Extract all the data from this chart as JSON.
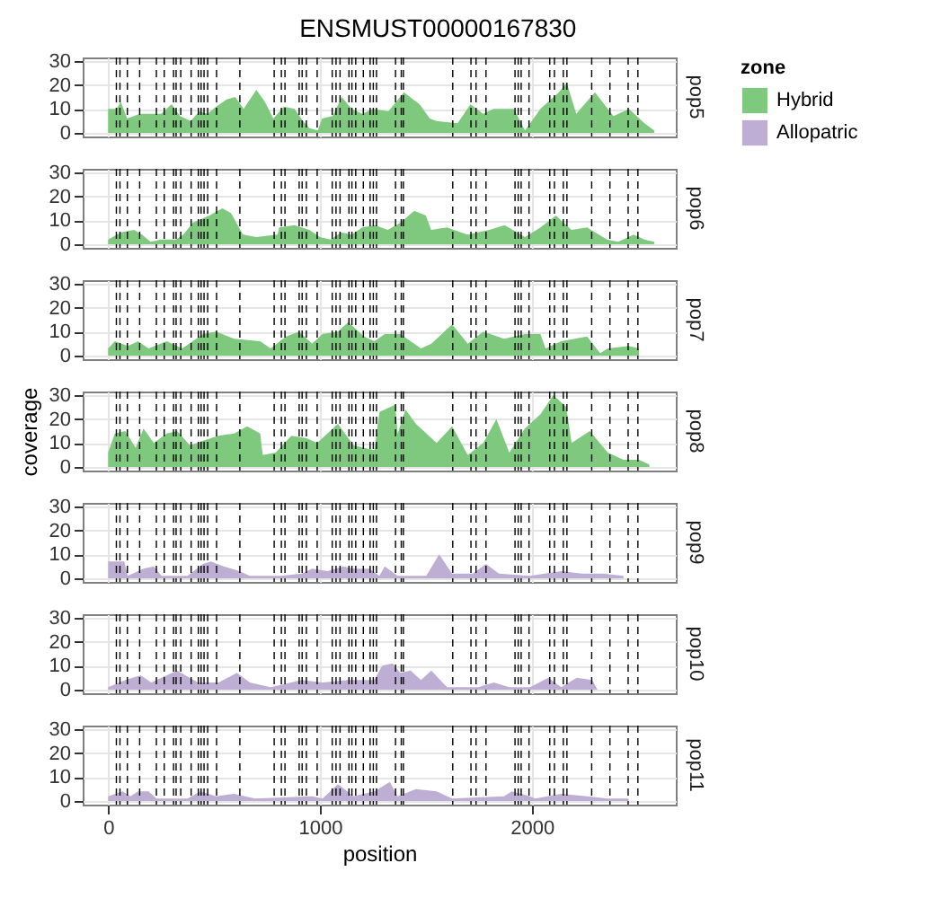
{
  "chart_data": [
    {
      "type": "area",
      "title": "ENSMUST00000167830",
      "subtitle": "pop5",
      "legend": "right",
      "legend_title": "zone",
      "x": [
        0,
        40,
        60,
        90,
        150,
        250,
        300,
        340,
        390,
        430,
        470,
        510,
        560,
        600,
        640,
        700,
        740,
        780,
        830,
        880,
        920,
        950,
        990,
        1010,
        1060,
        1103,
        1150,
        1200,
        1250,
        1323,
        1397,
        1440,
        1470,
        1519,
        1549,
        1650,
        1711,
        1770,
        1820,
        1916,
        1968,
        2041,
        2128,
        2165,
        2210,
        2298,
        2386,
        2459,
        2532,
        2578
      ],
      "series": [
        {
          "name": "Hybrid",
          "color": "#7fc97f",
          "values": [
            10,
            10,
            13,
            6,
            8,
            8,
            12,
            7,
            5,
            9,
            8,
            11,
            14,
            15,
            10,
            18,
            13,
            6,
            11,
            10,
            5,
            2,
            1,
            6,
            7,
            15,
            10,
            8,
            10,
            9,
            17,
            14,
            12,
            6,
            5,
            4,
            12,
            8,
            10,
            10,
            1,
            10,
            17,
            21,
            8,
            17,
            7,
            10,
            4,
            1
          ]
        }
      ],
      "xlim": [
        -120,
        2680
      ],
      "ylim": [
        -1.5,
        31.5
      ],
      "xticks": [
        0,
        1000,
        2000
      ],
      "yticks": [
        0,
        10,
        20,
        30
      ],
      "grid": true,
      "tick_labels": "y",
      "ref_lines": [
        {
          "axis": "x",
          "value": 39
        },
        {
          "axis": "x",
          "value": 56
        },
        {
          "axis": "x",
          "value": 91
        },
        {
          "axis": "x",
          "value": 149
        },
        {
          "axis": "x",
          "value": 228
        },
        {
          "axis": "x",
          "value": 265
        },
        {
          "axis": "x",
          "value": 309
        },
        {
          "axis": "x",
          "value": 321
        },
        {
          "axis": "x",
          "value": 343
        },
        {
          "axis": "x",
          "value": 392
        },
        {
          "axis": "x",
          "value": 426
        },
        {
          "axis": "x",
          "value": 439
        },
        {
          "axis": "x",
          "value": 453
        },
        {
          "axis": "x",
          "value": 470
        },
        {
          "axis": "x",
          "value": 512
        },
        {
          "axis": "x",
          "value": 622
        },
        {
          "axis": "x",
          "value": 784
        },
        {
          "axis": "x",
          "value": 818
        },
        {
          "axis": "x",
          "value": 835
        },
        {
          "axis": "x",
          "value": 902
        },
        {
          "axis": "x",
          "value": 916
        },
        {
          "axis": "x",
          "value": 936
        },
        {
          "axis": "x",
          "value": 987
        },
        {
          "axis": "x",
          "value": 1058
        },
        {
          "axis": "x",
          "value": 1076
        },
        {
          "axis": "x",
          "value": 1095
        },
        {
          "axis": "x",
          "value": 1137
        },
        {
          "axis": "x",
          "value": 1151
        },
        {
          "axis": "x",
          "value": 1169
        },
        {
          "axis": "x",
          "value": 1205
        },
        {
          "axis": "x",
          "value": 1237
        },
        {
          "axis": "x",
          "value": 1252
        },
        {
          "axis": "x",
          "value": 1267
        },
        {
          "axis": "x",
          "value": 1357
        },
        {
          "axis": "x",
          "value": 1384
        },
        {
          "axis": "x",
          "value": 1394
        },
        {
          "axis": "x",
          "value": 1627
        },
        {
          "axis": "x",
          "value": 1713
        },
        {
          "axis": "x",
          "value": 1737
        },
        {
          "axis": "x",
          "value": 1784
        },
        {
          "axis": "x",
          "value": 1921
        },
        {
          "axis": "x",
          "value": 1936
        },
        {
          "axis": "x",
          "value": 1950
        },
        {
          "axis": "x",
          "value": 1987
        },
        {
          "axis": "x",
          "value": 2085
        },
        {
          "axis": "x",
          "value": 2107
        },
        {
          "axis": "x",
          "value": 2149
        },
        {
          "axis": "x",
          "value": 2166
        },
        {
          "axis": "x",
          "value": 2283
        },
        {
          "axis": "x",
          "value": 2369
        },
        {
          "axis": "x",
          "value": 2455
        },
        {
          "axis": "x",
          "value": 2501
        }
      ]
    },
    {
      "type": "area",
      "subtitle": "pop6",
      "legend": "right",
      "x": [
        0,
        61,
        122,
        160,
        200,
        250,
        320,
        355,
        400,
        478,
        539,
        580,
        612,
        637,
        700,
        800,
        808,
        880,
        950,
        1000,
        1050,
        1100,
        1150,
        1200,
        1260,
        1320,
        1380,
        1445,
        1500,
        1525,
        1600,
        1696,
        1800,
        1872,
        1968,
        2041,
        2114,
        2187,
        2261,
        2356,
        2408,
        2481,
        2532,
        2578
      ],
      "series": [
        {
          "name": "Hybrid",
          "color": "#7fc97f",
          "values": [
            2,
            5,
            6,
            4,
            1,
            2,
            2,
            4,
            9,
            12,
            15,
            13,
            8,
            4,
            3,
            4,
            7,
            8,
            6,
            3,
            2,
            5,
            4,
            7,
            8,
            6,
            9,
            14,
            12,
            6,
            7,
            4,
            6,
            8,
            3,
            7,
            12,
            6,
            7,
            2,
            1,
            4,
            2,
            1
          ]
        }
      ],
      "xlim": [
        -120,
        2680
      ],
      "ylim": [
        -1.5,
        31.5
      ],
      "xticks": [
        0,
        1000,
        2000
      ],
      "yticks": [
        0,
        10,
        20,
        30
      ],
      "grid": true,
      "tick_labels": "y",
      "ref_lines": [
        {
          "axis": "x",
          "value": 39
        },
        {
          "axis": "x",
          "value": 56
        },
        {
          "axis": "x",
          "value": 91
        },
        {
          "axis": "x",
          "value": 149
        },
        {
          "axis": "x",
          "value": 228
        },
        {
          "axis": "x",
          "value": 265
        },
        {
          "axis": "x",
          "value": 309
        },
        {
          "axis": "x",
          "value": 321
        },
        {
          "axis": "x",
          "value": 343
        },
        {
          "axis": "x",
          "value": 392
        },
        {
          "axis": "x",
          "value": 426
        },
        {
          "axis": "x",
          "value": 439
        },
        {
          "axis": "x",
          "value": 453
        },
        {
          "axis": "x",
          "value": 470
        },
        {
          "axis": "x",
          "value": 512
        },
        {
          "axis": "x",
          "value": 622
        },
        {
          "axis": "x",
          "value": 784
        },
        {
          "axis": "x",
          "value": 818
        },
        {
          "axis": "x",
          "value": 835
        },
        {
          "axis": "x",
          "value": 902
        },
        {
          "axis": "x",
          "value": 916
        },
        {
          "axis": "x",
          "value": 936
        },
        {
          "axis": "x",
          "value": 987
        },
        {
          "axis": "x",
          "value": 1058
        },
        {
          "axis": "x",
          "value": 1076
        },
        {
          "axis": "x",
          "value": 1095
        },
        {
          "axis": "x",
          "value": 1137
        },
        {
          "axis": "x",
          "value": 1151
        },
        {
          "axis": "x",
          "value": 1169
        },
        {
          "axis": "x",
          "value": 1205
        },
        {
          "axis": "x",
          "value": 1237
        },
        {
          "axis": "x",
          "value": 1252
        },
        {
          "axis": "x",
          "value": 1267
        },
        {
          "axis": "x",
          "value": 1357
        },
        {
          "axis": "x",
          "value": 1384
        },
        {
          "axis": "x",
          "value": 1394
        },
        {
          "axis": "x",
          "value": 1627
        },
        {
          "axis": "x",
          "value": 1713
        },
        {
          "axis": "x",
          "value": 1737
        },
        {
          "axis": "x",
          "value": 1784
        },
        {
          "axis": "x",
          "value": 1921
        },
        {
          "axis": "x",
          "value": 1936
        },
        {
          "axis": "x",
          "value": 1950
        },
        {
          "axis": "x",
          "value": 1987
        },
        {
          "axis": "x",
          "value": 2085
        },
        {
          "axis": "x",
          "value": 2107
        },
        {
          "axis": "x",
          "value": 2149
        },
        {
          "axis": "x",
          "value": 2166
        },
        {
          "axis": "x",
          "value": 2283
        },
        {
          "axis": "x",
          "value": 2369
        },
        {
          "axis": "x",
          "value": 2455
        },
        {
          "axis": "x",
          "value": 2501
        }
      ]
    },
    {
      "type": "area",
      "subtitle": "pop7",
      "legend": "right",
      "x": [
        0,
        32,
        93,
        142,
        191,
        277,
        350,
        448,
        510,
        595,
        718,
        767,
        840,
        902,
        963,
        1012,
        1085,
        1134,
        1208,
        1257,
        1306,
        1379,
        1477,
        1526,
        1624,
        1698,
        1771,
        1869,
        1967,
        2041,
        2065,
        2139,
        2261,
        2323,
        2359,
        2457,
        2506
      ],
      "series": [
        {
          "name": "Hybrid",
          "color": "#7fc97f",
          "values": [
            3,
            6,
            4,
            6,
            3,
            6,
            3,
            9,
            10,
            7,
            6,
            3,
            8,
            10,
            5,
            9,
            10,
            14,
            8,
            6,
            9,
            9,
            3,
            5,
            13,
            5,
            10,
            7,
            9,
            9,
            3,
            6,
            8,
            1,
            3,
            4,
            3
          ]
        }
      ],
      "xlim": [
        -120,
        2680
      ],
      "ylim": [
        -1.5,
        31.5
      ],
      "xticks": [
        0,
        1000,
        2000
      ],
      "yticks": [
        0,
        10,
        20,
        30
      ],
      "grid": true,
      "tick_labels": "y",
      "ref_lines": [
        {
          "axis": "x",
          "value": 39
        },
        {
          "axis": "x",
          "value": 56
        },
        {
          "axis": "x",
          "value": 91
        },
        {
          "axis": "x",
          "value": 149
        },
        {
          "axis": "x",
          "value": 228
        },
        {
          "axis": "x",
          "value": 265
        },
        {
          "axis": "x",
          "value": 309
        },
        {
          "axis": "x",
          "value": 321
        },
        {
          "axis": "x",
          "value": 343
        },
        {
          "axis": "x",
          "value": 392
        },
        {
          "axis": "x",
          "value": 426
        },
        {
          "axis": "x",
          "value": 439
        },
        {
          "axis": "x",
          "value": 453
        },
        {
          "axis": "x",
          "value": 470
        },
        {
          "axis": "x",
          "value": 512
        },
        {
          "axis": "x",
          "value": 622
        },
        {
          "axis": "x",
          "value": 784
        },
        {
          "axis": "x",
          "value": 818
        },
        {
          "axis": "x",
          "value": 835
        },
        {
          "axis": "x",
          "value": 902
        },
        {
          "axis": "x",
          "value": 916
        },
        {
          "axis": "x",
          "value": 936
        },
        {
          "axis": "x",
          "value": 987
        },
        {
          "axis": "x",
          "value": 1058
        },
        {
          "axis": "x",
          "value": 1076
        },
        {
          "axis": "x",
          "value": 1095
        },
        {
          "axis": "x",
          "value": 1137
        },
        {
          "axis": "x",
          "value": 1151
        },
        {
          "axis": "x",
          "value": 1169
        },
        {
          "axis": "x",
          "value": 1205
        },
        {
          "axis": "x",
          "value": 1237
        },
        {
          "axis": "x",
          "value": 1252
        },
        {
          "axis": "x",
          "value": 1267
        },
        {
          "axis": "x",
          "value": 1357
        },
        {
          "axis": "x",
          "value": 1384
        },
        {
          "axis": "x",
          "value": 1394
        },
        {
          "axis": "x",
          "value": 1627
        },
        {
          "axis": "x",
          "value": 1713
        },
        {
          "axis": "x",
          "value": 1737
        },
        {
          "axis": "x",
          "value": 1784
        },
        {
          "axis": "x",
          "value": 1921
        },
        {
          "axis": "x",
          "value": 1936
        },
        {
          "axis": "x",
          "value": 1950
        },
        {
          "axis": "x",
          "value": 1987
        },
        {
          "axis": "x",
          "value": 2085
        },
        {
          "axis": "x",
          "value": 2107
        },
        {
          "axis": "x",
          "value": 2149
        },
        {
          "axis": "x",
          "value": 2166
        },
        {
          "axis": "x",
          "value": 2283
        },
        {
          "axis": "x",
          "value": 2369
        },
        {
          "axis": "x",
          "value": 2455
        },
        {
          "axis": "x",
          "value": 2501
        }
      ]
    },
    {
      "type": "area",
      "subtitle": "pop8",
      "ylabel": "coverage",
      "legend": "right",
      "x": [
        0,
        32,
        81,
        130,
        167,
        216,
        277,
        326,
        387,
        448,
        522,
        595,
        657,
        718,
        730,
        791,
        865,
        938,
        987,
        1085,
        1159,
        1257,
        1281,
        1355,
        1367,
        1404,
        1453,
        1551,
        1624,
        1698,
        1771,
        1833,
        1894,
        1967,
        2041,
        2102,
        2163,
        2188,
        2274,
        2359,
        2433,
        2506,
        2555
      ],
      "series": [
        {
          "name": "Hybrid",
          "color": "#7fc97f",
          "values": [
            6,
            14,
            15,
            8,
            16,
            10,
            14,
            15,
            9,
            11,
            13,
            14,
            17,
            14,
            5,
            6,
            13,
            12,
            10,
            18,
            9,
            7,
            23,
            26,
            14,
            24,
            18,
            10,
            17,
            5,
            10,
            20,
            6,
            16,
            22,
            30,
            25,
            10,
            15,
            6,
            3,
            3,
            1
          ]
        }
      ],
      "xlim": [
        -120,
        2680
      ],
      "ylim": [
        -1.5,
        31.5
      ],
      "xticks": [
        0,
        1000,
        2000
      ],
      "yticks": [
        0,
        10,
        20,
        30
      ],
      "grid": true,
      "tick_labels": "y",
      "ref_lines": [
        {
          "axis": "x",
          "value": 39
        },
        {
          "axis": "x",
          "value": 56
        },
        {
          "axis": "x",
          "value": 91
        },
        {
          "axis": "x",
          "value": 149
        },
        {
          "axis": "x",
          "value": 228
        },
        {
          "axis": "x",
          "value": 265
        },
        {
          "axis": "x",
          "value": 309
        },
        {
          "axis": "x",
          "value": 321
        },
        {
          "axis": "x",
          "value": 343
        },
        {
          "axis": "x",
          "value": 392
        },
        {
          "axis": "x",
          "value": 426
        },
        {
          "axis": "x",
          "value": 439
        },
        {
          "axis": "x",
          "value": 453
        },
        {
          "axis": "x",
          "value": 470
        },
        {
          "axis": "x",
          "value": 512
        },
        {
          "axis": "x",
          "value": 622
        },
        {
          "axis": "x",
          "value": 784
        },
        {
          "axis": "x",
          "value": 818
        },
        {
          "axis": "x",
          "value": 835
        },
        {
          "axis": "x",
          "value": 902
        },
        {
          "axis": "x",
          "value": 916
        },
        {
          "axis": "x",
          "value": 936
        },
        {
          "axis": "x",
          "value": 987
        },
        {
          "axis": "x",
          "value": 1058
        },
        {
          "axis": "x",
          "value": 1076
        },
        {
          "axis": "x",
          "value": 1095
        },
        {
          "axis": "x",
          "value": 1137
        },
        {
          "axis": "x",
          "value": 1151
        },
        {
          "axis": "x",
          "value": 1169
        },
        {
          "axis": "x",
          "value": 1205
        },
        {
          "axis": "x",
          "value": 1237
        },
        {
          "axis": "x",
          "value": 1252
        },
        {
          "axis": "x",
          "value": 1267
        },
        {
          "axis": "x",
          "value": 1357
        },
        {
          "axis": "x",
          "value": 1384
        },
        {
          "axis": "x",
          "value": 1394
        },
        {
          "axis": "x",
          "value": 1627
        },
        {
          "axis": "x",
          "value": 1713
        },
        {
          "axis": "x",
          "value": 1737
        },
        {
          "axis": "x",
          "value": 1784
        },
        {
          "axis": "x",
          "value": 1921
        },
        {
          "axis": "x",
          "value": 1936
        },
        {
          "axis": "x",
          "value": 1950
        },
        {
          "axis": "x",
          "value": 1987
        },
        {
          "axis": "x",
          "value": 2085
        },
        {
          "axis": "x",
          "value": 2107
        },
        {
          "axis": "x",
          "value": 2149
        },
        {
          "axis": "x",
          "value": 2166
        },
        {
          "axis": "x",
          "value": 2283
        },
        {
          "axis": "x",
          "value": 2369
        },
        {
          "axis": "x",
          "value": 2455
        },
        {
          "axis": "x",
          "value": 2501
        }
      ]
    },
    {
      "type": "area",
      "subtitle": "pop9",
      "legend": "right",
      "x": [
        0,
        76,
        93,
        167,
        216,
        252,
        375,
        448,
        485,
        546,
        620,
        669,
        816,
        914,
        963,
        1036,
        1109,
        1159,
        1232,
        1281,
        1306,
        1367,
        1502,
        1563,
        1624,
        1673,
        1722,
        1784,
        1845,
        1992,
        2139,
        2236,
        2335,
        2433
      ],
      "series": [
        {
          "name": "Allopatric",
          "color": "#beaed4",
          "values": [
            7,
            7,
            1,
            4,
            5,
            1,
            1,
            6,
            7,
            5,
            3,
            1,
            1,
            2,
            4,
            3,
            5,
            4,
            4,
            1,
            5,
            1,
            1,
            10,
            2,
            2,
            2,
            6,
            2,
            1,
            3,
            2,
            2,
            1
          ]
        }
      ],
      "xlim": [
        -120,
        2680
      ],
      "ylim": [
        -1.5,
        31.5
      ],
      "xticks": [
        0,
        1000,
        2000
      ],
      "yticks": [
        0,
        10,
        20,
        30
      ],
      "grid": true,
      "tick_labels": "y",
      "ref_lines": [
        {
          "axis": "x",
          "value": 39
        },
        {
          "axis": "x",
          "value": 56
        },
        {
          "axis": "x",
          "value": 91
        },
        {
          "axis": "x",
          "value": 149
        },
        {
          "axis": "x",
          "value": 228
        },
        {
          "axis": "x",
          "value": 265
        },
        {
          "axis": "x",
          "value": 309
        },
        {
          "axis": "x",
          "value": 321
        },
        {
          "axis": "x",
          "value": 343
        },
        {
          "axis": "x",
          "value": 392
        },
        {
          "axis": "x",
          "value": 426
        },
        {
          "axis": "x",
          "value": 439
        },
        {
          "axis": "x",
          "value": 453
        },
        {
          "axis": "x",
          "value": 470
        },
        {
          "axis": "x",
          "value": 512
        },
        {
          "axis": "x",
          "value": 622
        },
        {
          "axis": "x",
          "value": 784
        },
        {
          "axis": "x",
          "value": 818
        },
        {
          "axis": "x",
          "value": 835
        },
        {
          "axis": "x",
          "value": 902
        },
        {
          "axis": "x",
          "value": 916
        },
        {
          "axis": "x",
          "value": 936
        },
        {
          "axis": "x",
          "value": 987
        },
        {
          "axis": "x",
          "value": 1058
        },
        {
          "axis": "x",
          "value": 1076
        },
        {
          "axis": "x",
          "value": 1095
        },
        {
          "axis": "x",
          "value": 1137
        },
        {
          "axis": "x",
          "value": 1151
        },
        {
          "axis": "x",
          "value": 1169
        },
        {
          "axis": "x",
          "value": 1205
        },
        {
          "axis": "x",
          "value": 1237
        },
        {
          "axis": "x",
          "value": 1252
        },
        {
          "axis": "x",
          "value": 1267
        },
        {
          "axis": "x",
          "value": 1357
        },
        {
          "axis": "x",
          "value": 1384
        },
        {
          "axis": "x",
          "value": 1394
        },
        {
          "axis": "x",
          "value": 1627
        },
        {
          "axis": "x",
          "value": 1713
        },
        {
          "axis": "x",
          "value": 1737
        },
        {
          "axis": "x",
          "value": 1784
        },
        {
          "axis": "x",
          "value": 1921
        },
        {
          "axis": "x",
          "value": 1936
        },
        {
          "axis": "x",
          "value": 1950
        },
        {
          "axis": "x",
          "value": 1987
        },
        {
          "axis": "x",
          "value": 2085
        },
        {
          "axis": "x",
          "value": 2107
        },
        {
          "axis": "x",
          "value": 2149
        },
        {
          "axis": "x",
          "value": 2166
        },
        {
          "axis": "x",
          "value": 2283
        },
        {
          "axis": "x",
          "value": 2369
        },
        {
          "axis": "x",
          "value": 2455
        },
        {
          "axis": "x",
          "value": 2501
        }
      ]
    },
    {
      "type": "area",
      "subtitle": "pop10",
      "legend": "right",
      "x": [
        0,
        81,
        154,
        203,
        326,
        424,
        522,
        608,
        669,
        767,
        914,
        1012,
        1134,
        1257,
        1294,
        1343,
        1379,
        1428,
        1477,
        1526,
        1600,
        1747,
        1821,
        1894,
        1992,
        2078,
        2139,
        2212,
        2286,
        2310
      ],
      "series": [
        {
          "name": "Allopatric",
          "color": "#beaed4",
          "values": [
            1,
            4,
            6,
            3,
            8,
            3,
            3,
            7,
            3,
            1,
            4,
            3,
            4,
            4,
            10,
            11,
            7,
            8,
            4,
            8,
            1,
            1,
            3,
            1,
            1,
            5,
            1,
            5,
            4,
            0
          ]
        }
      ],
      "xlim": [
        -120,
        2680
      ],
      "ylim": [
        -1.5,
        31.5
      ],
      "xticks": [
        0,
        1000,
        2000
      ],
      "yticks": [
        0,
        10,
        20,
        30
      ],
      "grid": true,
      "tick_labels": "y",
      "ref_lines": [
        {
          "axis": "x",
          "value": 39
        },
        {
          "axis": "x",
          "value": 56
        },
        {
          "axis": "x",
          "value": 91
        },
        {
          "axis": "x",
          "value": 149
        },
        {
          "axis": "x",
          "value": 228
        },
        {
          "axis": "x",
          "value": 265
        },
        {
          "axis": "x",
          "value": 309
        },
        {
          "axis": "x",
          "value": 321
        },
        {
          "axis": "x",
          "value": 343
        },
        {
          "axis": "x",
          "value": 392
        },
        {
          "axis": "x",
          "value": 426
        },
        {
          "axis": "x",
          "value": 439
        },
        {
          "axis": "x",
          "value": 453
        },
        {
          "axis": "x",
          "value": 470
        },
        {
          "axis": "x",
          "value": 512
        },
        {
          "axis": "x",
          "value": 622
        },
        {
          "axis": "x",
          "value": 784
        },
        {
          "axis": "x",
          "value": 818
        },
        {
          "axis": "x",
          "value": 835
        },
        {
          "axis": "x",
          "value": 902
        },
        {
          "axis": "x",
          "value": 916
        },
        {
          "axis": "x",
          "value": 936
        },
        {
          "axis": "x",
          "value": 987
        },
        {
          "axis": "x",
          "value": 1058
        },
        {
          "axis": "x",
          "value": 1076
        },
        {
          "axis": "x",
          "value": 1095
        },
        {
          "axis": "x",
          "value": 1137
        },
        {
          "axis": "x",
          "value": 1151
        },
        {
          "axis": "x",
          "value": 1169
        },
        {
          "axis": "x",
          "value": 1205
        },
        {
          "axis": "x",
          "value": 1237
        },
        {
          "axis": "x",
          "value": 1252
        },
        {
          "axis": "x",
          "value": 1267
        },
        {
          "axis": "x",
          "value": 1357
        },
        {
          "axis": "x",
          "value": 1384
        },
        {
          "axis": "x",
          "value": 1394
        },
        {
          "axis": "x",
          "value": 1627
        },
        {
          "axis": "x",
          "value": 1713
        },
        {
          "axis": "x",
          "value": 1737
        },
        {
          "axis": "x",
          "value": 1784
        },
        {
          "axis": "x",
          "value": 1921
        },
        {
          "axis": "x",
          "value": 1936
        },
        {
          "axis": "x",
          "value": 1950
        },
        {
          "axis": "x",
          "value": 1987
        },
        {
          "axis": "x",
          "value": 2085
        },
        {
          "axis": "x",
          "value": 2107
        },
        {
          "axis": "x",
          "value": 2149
        },
        {
          "axis": "x",
          "value": 2166
        },
        {
          "axis": "x",
          "value": 2283
        },
        {
          "axis": "x",
          "value": 2369
        },
        {
          "axis": "x",
          "value": 2455
        },
        {
          "axis": "x",
          "value": 2501
        }
      ]
    },
    {
      "type": "area",
      "subtitle": "pop11",
      "xlabel": "position",
      "legend": "right",
      "x": [
        0,
        69,
        105,
        142,
        191,
        228,
        375,
        436,
        510,
        595,
        693,
        963,
        1012,
        1085,
        1159,
        1257,
        1330,
        1367,
        1453,
        1551,
        1624,
        1869,
        1906,
        1992,
        2016,
        2139,
        2261,
        2359,
        2457
      ],
      "series": [
        {
          "name": "Allopatric",
          "color": "#beaed4",
          "values": [
            2,
            4,
            2,
            4,
            4,
            1,
            1,
            4,
            2,
            3,
            1,
            2,
            1,
            7,
            2,
            4,
            8,
            2,
            5,
            4,
            1,
            2,
            4,
            2,
            1,
            3,
            2,
            1,
            1
          ]
        }
      ],
      "xlim": [
        -120,
        2680
      ],
      "ylim": [
        -1.5,
        31.5
      ],
      "xticks": [
        0,
        1000,
        2000
      ],
      "yticks": [
        0,
        10,
        20,
        30
      ],
      "grid": true,
      "ref_lines": [
        {
          "axis": "x",
          "value": 39
        },
        {
          "axis": "x",
          "value": 56
        },
        {
          "axis": "x",
          "value": 91
        },
        {
          "axis": "x",
          "value": 149
        },
        {
          "axis": "x",
          "value": 228
        },
        {
          "axis": "x",
          "value": 265
        },
        {
          "axis": "x",
          "value": 309
        },
        {
          "axis": "x",
          "value": 321
        },
        {
          "axis": "x",
          "value": 343
        },
        {
          "axis": "x",
          "value": 392
        },
        {
          "axis": "x",
          "value": 426
        },
        {
          "axis": "x",
          "value": 439
        },
        {
          "axis": "x",
          "value": 453
        },
        {
          "axis": "x",
          "value": 470
        },
        {
          "axis": "x",
          "value": 512
        },
        {
          "axis": "x",
          "value": 622
        },
        {
          "axis": "x",
          "value": 784
        },
        {
          "axis": "x",
          "value": 818
        },
        {
          "axis": "x",
          "value": 835
        },
        {
          "axis": "x",
          "value": 902
        },
        {
          "axis": "x",
          "value": 916
        },
        {
          "axis": "x",
          "value": 936
        },
        {
          "axis": "x",
          "value": 987
        },
        {
          "axis": "x",
          "value": 1058
        },
        {
          "axis": "x",
          "value": 1076
        },
        {
          "axis": "x",
          "value": 1095
        },
        {
          "axis": "x",
          "value": 1137
        },
        {
          "axis": "x",
          "value": 1151
        },
        {
          "axis": "x",
          "value": 1169
        },
        {
          "axis": "x",
          "value": 1205
        },
        {
          "axis": "x",
          "value": 1237
        },
        {
          "axis": "x",
          "value": 1252
        },
        {
          "axis": "x",
          "value": 1267
        },
        {
          "axis": "x",
          "value": 1357
        },
        {
          "axis": "x",
          "value": 1384
        },
        {
          "axis": "x",
          "value": 1394
        },
        {
          "axis": "x",
          "value": 1627
        },
        {
          "axis": "x",
          "value": 1713
        },
        {
          "axis": "x",
          "value": 1737
        },
        {
          "axis": "x",
          "value": 1784
        },
        {
          "axis": "x",
          "value": 1921
        },
        {
          "axis": "x",
          "value": 1936
        },
        {
          "axis": "x",
          "value": 1950
        },
        {
          "axis": "x",
          "value": 1987
        },
        {
          "axis": "x",
          "value": 2085
        },
        {
          "axis": "x",
          "value": 2107
        },
        {
          "axis": "x",
          "value": 2149
        },
        {
          "axis": "x",
          "value": 2166
        },
        {
          "axis": "x",
          "value": 2283
        },
        {
          "axis": "x",
          "value": 2369
        },
        {
          "axis": "x",
          "value": 2455
        },
        {
          "axis": "x",
          "value": 2501
        }
      ]
    }
  ]
}
